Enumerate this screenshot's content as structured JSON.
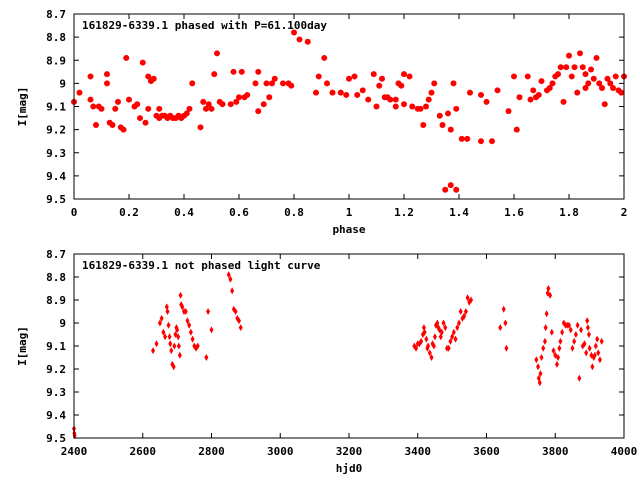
{
  "colors": {
    "points": "#ff0000",
    "axes": "#000000",
    "background": "#ffffff"
  },
  "chart_data": [
    {
      "type": "scatter",
      "title": "161829-6339.1 phased with P=61.100day",
      "xlabel": "phase",
      "ylabel": "I[mag]",
      "xlim": [
        0,
        2
      ],
      "ylim": [
        8.7,
        9.5
      ],
      "y_inverted": true,
      "grid": false,
      "marker": "filled-circle",
      "x_ticks": [
        "0",
        "0.2",
        "0.4",
        "0.6",
        "0.8",
        "1",
        "1.2",
        "1.4",
        "1.6",
        "1.8",
        "2"
      ],
      "y_ticks": [
        "8.7",
        "8.8",
        "8.9",
        "9",
        "9.1",
        "9.2",
        "9.3",
        "9.4",
        "9.5"
      ],
      "points": [
        [
          0.0,
          9.08
        ],
        [
          0.02,
          9.04
        ],
        [
          0.06,
          8.97
        ],
        [
          0.06,
          9.07
        ],
        [
          0.07,
          9.1
        ],
        [
          0.08,
          9.18
        ],
        [
          0.09,
          9.1
        ],
        [
          0.1,
          9.11
        ],
        [
          0.12,
          9.0
        ],
        [
          0.12,
          8.96
        ],
        [
          0.13,
          9.17
        ],
        [
          0.14,
          9.18
        ],
        [
          0.15,
          9.11
        ],
        [
          0.16,
          9.08
        ],
        [
          0.17,
          9.19
        ],
        [
          0.18,
          9.2
        ],
        [
          0.19,
          8.89
        ],
        [
          0.2,
          9.07
        ],
        [
          0.22,
          9.1
        ],
        [
          0.23,
          9.09
        ],
        [
          0.24,
          9.15
        ],
        [
          0.25,
          8.91
        ],
        [
          0.26,
          9.17
        ],
        [
          0.27,
          9.11
        ],
        [
          0.27,
          8.97
        ],
        [
          0.28,
          8.99
        ],
        [
          0.29,
          8.98
        ],
        [
          0.3,
          9.14
        ],
        [
          0.31,
          9.15
        ],
        [
          0.31,
          9.11
        ],
        [
          0.32,
          9.14
        ],
        [
          0.33,
          9.14
        ],
        [
          0.34,
          9.15
        ],
        [
          0.35,
          9.14
        ],
        [
          0.36,
          9.15
        ],
        [
          0.37,
          9.15
        ],
        [
          0.38,
          9.14
        ],
        [
          0.39,
          9.15
        ],
        [
          0.4,
          9.14
        ],
        [
          0.41,
          9.13
        ],
        [
          0.42,
          9.11
        ],
        [
          0.43,
          9.0
        ],
        [
          0.46,
          9.19
        ],
        [
          0.47,
          9.08
        ],
        [
          0.48,
          9.11
        ],
        [
          0.49,
          9.09
        ],
        [
          0.5,
          9.11
        ],
        [
          0.51,
          8.96
        ],
        [
          0.52,
          8.87
        ],
        [
          0.53,
          9.08
        ],
        [
          0.54,
          9.09
        ],
        [
          0.57,
          9.09
        ],
        [
          0.58,
          8.95
        ],
        [
          0.59,
          9.08
        ],
        [
          0.6,
          9.06
        ],
        [
          0.61,
          8.95
        ],
        [
          0.62,
          9.06
        ],
        [
          0.63,
          9.05
        ],
        [
          0.66,
          9.0
        ],
        [
          0.67,
          9.12
        ],
        [
          0.67,
          8.95
        ],
        [
          0.69,
          9.09
        ],
        [
          0.7,
          9.0
        ],
        [
          0.71,
          9.06
        ],
        [
          0.72,
          9.0
        ],
        [
          0.73,
          8.98
        ],
        [
          0.76,
          9.0
        ],
        [
          0.78,
          9.0
        ],
        [
          0.79,
          9.01
        ],
        [
          0.8,
          8.78
        ],
        [
          0.82,
          8.81
        ],
        [
          0.85,
          8.82
        ],
        [
          0.88,
          9.04
        ],
        [
          0.89,
          8.97
        ],
        [
          0.91,
          8.89
        ],
        [
          0.92,
          9.0
        ],
        [
          0.94,
          9.04
        ],
        [
          0.97,
          9.04
        ],
        [
          0.99,
          9.05
        ],
        [
          1.0,
          8.98
        ],
        [
          1.02,
          8.97
        ],
        [
          1.03,
          9.05
        ],
        [
          1.05,
          9.03
        ],
        [
          1.07,
          9.07
        ],
        [
          1.09,
          8.96
        ],
        [
          1.1,
          9.1
        ],
        [
          1.11,
          9.01
        ],
        [
          1.12,
          8.98
        ],
        [
          1.13,
          9.06
        ],
        [
          1.14,
          9.06
        ],
        [
          1.15,
          9.07
        ],
        [
          1.17,
          9.07
        ],
        [
          1.17,
          9.1
        ],
        [
          1.18,
          9.0
        ],
        [
          1.19,
          9.01
        ],
        [
          1.2,
          9.09
        ],
        [
          1.2,
          8.96
        ],
        [
          1.22,
          8.97
        ],
        [
          1.23,
          9.1
        ],
        [
          1.25,
          9.11
        ],
        [
          1.26,
          9.11
        ],
        [
          1.27,
          9.18
        ],
        [
          1.28,
          9.1
        ],
        [
          1.29,
          9.07
        ],
        [
          1.3,
          9.04
        ],
        [
          1.31,
          9.0
        ],
        [
          1.33,
          9.14
        ],
        [
          1.34,
          9.18
        ],
        [
          1.35,
          9.46
        ],
        [
          1.36,
          9.13
        ],
        [
          1.37,
          9.2
        ],
        [
          1.37,
          9.44
        ],
        [
          1.38,
          9.0
        ],
        [
          1.39,
          9.11
        ],
        [
          1.39,
          9.46
        ],
        [
          1.41,
          9.24
        ],
        [
          1.43,
          9.24
        ],
        [
          1.44,
          9.04
        ],
        [
          1.48,
          9.25
        ],
        [
          1.48,
          9.05
        ],
        [
          1.5,
          9.08
        ],
        [
          1.52,
          9.25
        ],
        [
          1.54,
          9.03
        ],
        [
          1.58,
          9.12
        ],
        [
          1.6,
          8.97
        ],
        [
          1.61,
          9.2
        ],
        [
          1.62,
          9.06
        ],
        [
          1.65,
          8.97
        ],
        [
          1.66,
          9.07
        ],
        [
          1.67,
          9.03
        ],
        [
          1.68,
          9.06
        ],
        [
          1.69,
          9.05
        ],
        [
          1.7,
          8.99
        ],
        [
          1.72,
          9.03
        ],
        [
          1.73,
          9.02
        ],
        [
          1.74,
          9.0
        ],
        [
          1.75,
          8.97
        ],
        [
          1.76,
          8.96
        ],
        [
          1.77,
          8.93
        ],
        [
          1.78,
          9.08
        ],
        [
          1.79,
          8.93
        ],
        [
          1.8,
          8.88
        ],
        [
          1.81,
          8.97
        ],
        [
          1.82,
          8.93
        ],
        [
          1.83,
          9.04
        ],
        [
          1.84,
          8.87
        ],
        [
          1.85,
          8.93
        ],
        [
          1.86,
          8.96
        ],
        [
          1.86,
          9.02
        ],
        [
          1.87,
          9.0
        ],
        [
          1.88,
          8.94
        ],
        [
          1.89,
          8.98
        ],
        [
          1.9,
          8.89
        ],
        [
          1.91,
          9.0
        ],
        [
          1.92,
          9.02
        ],
        [
          1.93,
          9.09
        ],
        [
          1.94,
          8.98
        ],
        [
          1.95,
          9.0
        ],
        [
          1.96,
          9.02
        ],
        [
          1.97,
          8.97
        ],
        [
          1.98,
          9.03
        ],
        [
          1.99,
          9.04
        ],
        [
          2.0,
          8.97
        ]
      ]
    },
    {
      "type": "scatter",
      "title": "161829-6339.1 not phased light curve",
      "xlabel": "hjd0",
      "ylabel": "I[mag]",
      "xlim": [
        2400,
        4000
      ],
      "ylim": [
        8.7,
        9.5
      ],
      "y_inverted": true,
      "grid": false,
      "marker": "diamond",
      "x_ticks": [
        "2400",
        "2600",
        "2800",
        "3000",
        "3200",
        "3400",
        "3600",
        "3800",
        "4000"
      ],
      "y_ticks": [
        "8.7",
        "8.8",
        "8.9",
        "9",
        "9.1",
        "9.2",
        "9.3",
        "9.4",
        "9.5"
      ],
      "points": [
        [
          2400,
          9.46
        ],
        [
          2401,
          9.48
        ],
        [
          2402,
          9.49
        ],
        [
          2630,
          9.12
        ],
        [
          2640,
          9.09
        ],
        [
          2650,
          9.0
        ],
        [
          2655,
          8.98
        ],
        [
          2660,
          9.04
        ],
        [
          2665,
          9.06
        ],
        [
          2670,
          8.93
        ],
        [
          2672,
          8.95
        ],
        [
          2675,
          9.01
        ],
        [
          2678,
          9.06
        ],
        [
          2680,
          9.09
        ],
        [
          2683,
          9.12
        ],
        [
          2686,
          9.18
        ],
        [
          2690,
          9.19
        ],
        [
          2692,
          9.1
        ],
        [
          2695,
          9.05
        ],
        [
          2698,
          9.02
        ],
        [
          2700,
          9.03
        ],
        [
          2703,
          9.06
        ],
        [
          2705,
          9.1
        ],
        [
          2708,
          9.14
        ],
        [
          2710,
          8.88
        ],
        [
          2712,
          8.92
        ],
        [
          2715,
          8.93
        ],
        [
          2720,
          8.95
        ],
        [
          2725,
          8.95
        ],
        [
          2730,
          8.99
        ],
        [
          2735,
          9.01
        ],
        [
          2740,
          9.04
        ],
        [
          2745,
          9.07
        ],
        [
          2750,
          9.1
        ],
        [
          2755,
          9.11
        ],
        [
          2760,
          9.1
        ],
        [
          2785,
          9.15
        ],
        [
          2790,
          8.95
        ],
        [
          2800,
          9.03
        ],
        [
          2850,
          8.79
        ],
        [
          2855,
          8.81
        ],
        [
          2860,
          8.86
        ],
        [
          2865,
          8.94
        ],
        [
          2870,
          8.95
        ],
        [
          2875,
          8.98
        ],
        [
          2880,
          8.99
        ],
        [
          2885,
          9.02
        ],
        [
          3390,
          9.1
        ],
        [
          3395,
          9.11
        ],
        [
          3400,
          9.09
        ],
        [
          3405,
          9.09
        ],
        [
          3410,
          9.08
        ],
        [
          3415,
          9.05
        ],
        [
          3418,
          9.02
        ],
        [
          3420,
          9.04
        ],
        [
          3425,
          9.07
        ],
        [
          3428,
          9.11
        ],
        [
          3430,
          9.1
        ],
        [
          3435,
          9.13
        ],
        [
          3440,
          9.15
        ],
        [
          3443,
          9.09
        ],
        [
          3447,
          9.1
        ],
        [
          3450,
          9.06
        ],
        [
          3453,
          9.01
        ],
        [
          3457,
          9.0
        ],
        [
          3460,
          9.02
        ],
        [
          3463,
          9.03
        ],
        [
          3467,
          9.06
        ],
        [
          3470,
          9.04
        ],
        [
          3475,
          9.0
        ],
        [
          3480,
          9.02
        ],
        [
          3485,
          9.11
        ],
        [
          3490,
          9.11
        ],
        [
          3495,
          9.08
        ],
        [
          3500,
          9.06
        ],
        [
          3505,
          9.04
        ],
        [
          3510,
          9.07
        ],
        [
          3515,
          9.02
        ],
        [
          3520,
          9.0
        ],
        [
          3525,
          8.95
        ],
        [
          3530,
          8.98
        ],
        [
          3535,
          8.97
        ],
        [
          3540,
          8.95
        ],
        [
          3545,
          8.89
        ],
        [
          3550,
          8.91
        ],
        [
          3555,
          8.9
        ],
        [
          3640,
          9.02
        ],
        [
          3650,
          8.94
        ],
        [
          3655,
          9.0
        ],
        [
          3658,
          9.11
        ],
        [
          3745,
          9.16
        ],
        [
          3750,
          9.19
        ],
        [
          3752,
          9.24
        ],
        [
          3755,
          9.26
        ],
        [
          3757,
          9.22
        ],
        [
          3760,
          9.15
        ],
        [
          3765,
          9.11
        ],
        [
          3770,
          9.08
        ],
        [
          3772,
          9.02
        ],
        [
          3775,
          8.96
        ],
        [
          3778,
          8.87
        ],
        [
          3780,
          8.85
        ],
        [
          3785,
          8.88
        ],
        [
          3790,
          9.04
        ],
        [
          3795,
          9.12
        ],
        [
          3800,
          9.14
        ],
        [
          3805,
          9.18
        ],
        [
          3808,
          9.15
        ],
        [
          3812,
          9.11
        ],
        [
          3815,
          9.08
        ],
        [
          3820,
          9.04
        ],
        [
          3825,
          9.0
        ],
        [
          3830,
          9.01
        ],
        [
          3835,
          9.01
        ],
        [
          3840,
          9.01
        ],
        [
          3845,
          9.03
        ],
        [
          3850,
          9.11
        ],
        [
          3855,
          9.08
        ],
        [
          3860,
          9.05
        ],
        [
          3865,
          9.01
        ],
        [
          3870,
          9.24
        ],
        [
          3875,
          9.03
        ],
        [
          3880,
          9.1
        ],
        [
          3885,
          9.09
        ],
        [
          3890,
          9.13
        ],
        [
          3893,
          8.99
        ],
        [
          3895,
          9.02
        ],
        [
          3898,
          9.05
        ],
        [
          3900,
          9.11
        ],
        [
          3905,
          9.14
        ],
        [
          3908,
          9.19
        ],
        [
          3912,
          9.15
        ],
        [
          3915,
          9.14
        ],
        [
          3918,
          9.1
        ],
        [
          3922,
          9.07
        ],
        [
          3925,
          9.13
        ],
        [
          3930,
          9.16
        ],
        [
          3935,
          9.08
        ]
      ]
    }
  ]
}
